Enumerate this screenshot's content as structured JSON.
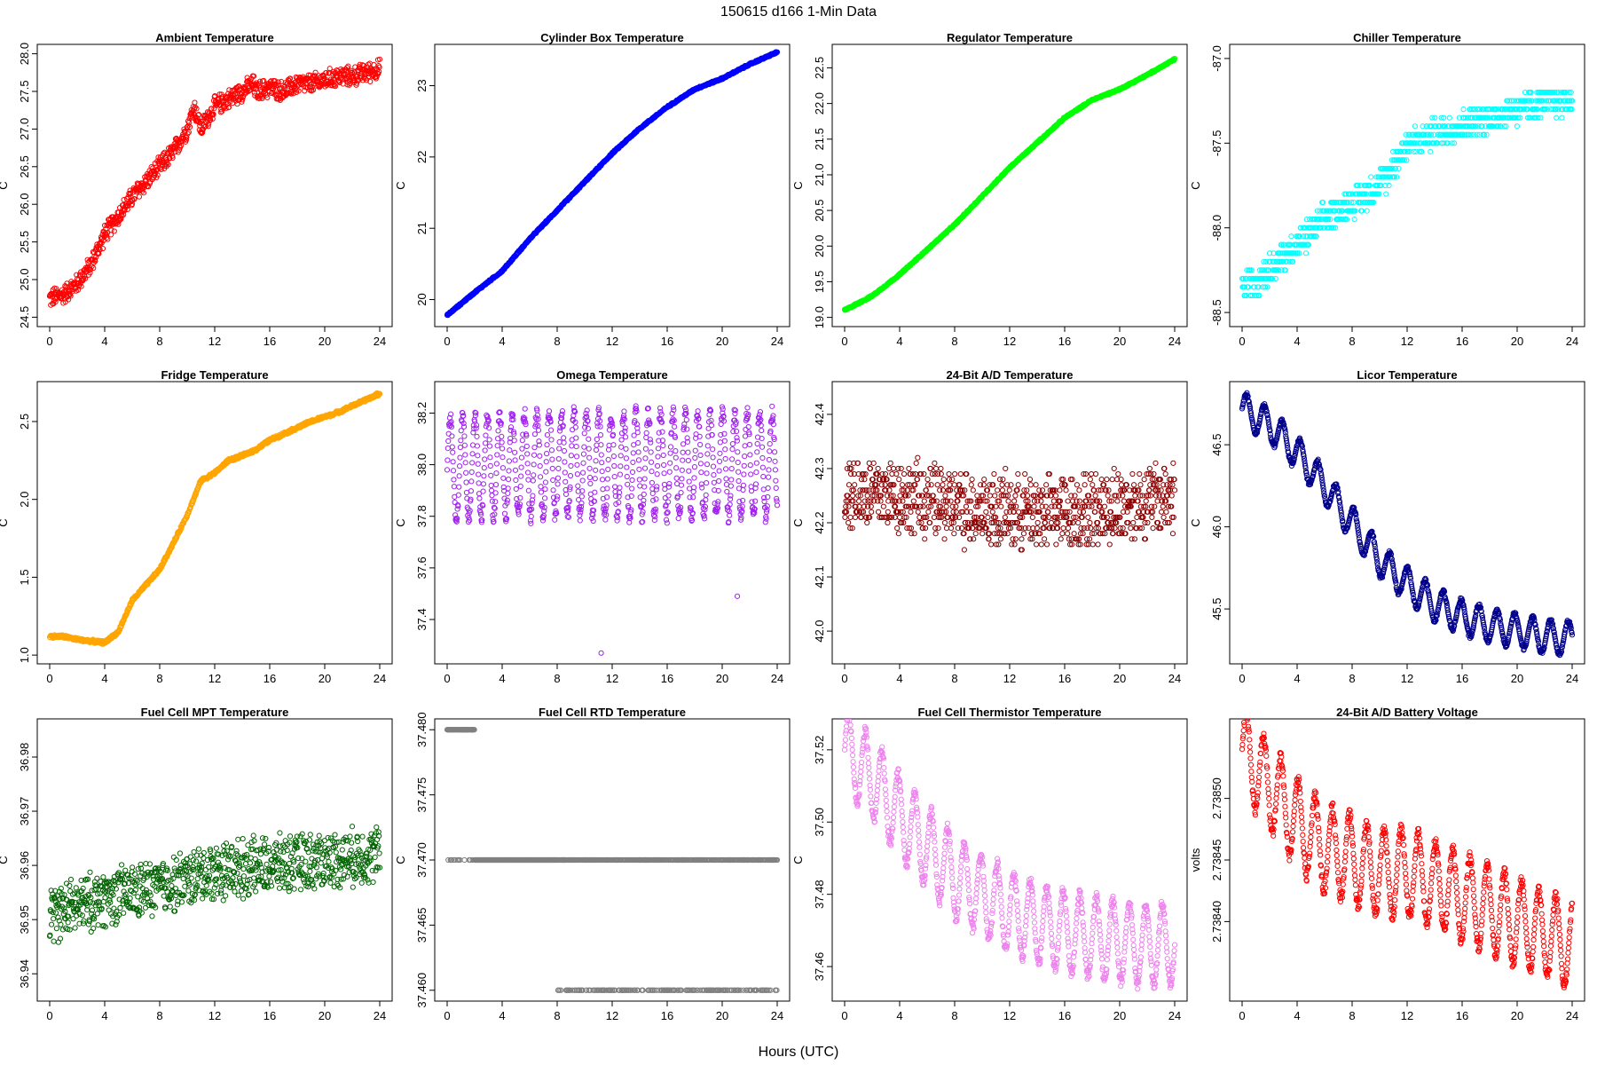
{
  "figure": {
    "title": "150615    d166    1-Min Data",
    "xlabel": "Hours (UTC)"
  },
  "chart_data": [
    {
      "type": "scatter",
      "title": "Ambient Temperature",
      "ylabel": "C",
      "color": "#ff0000",
      "xlim": [
        0,
        24
      ],
      "ylim": [
        24.45,
        28.05
      ],
      "xticks": [
        "0",
        "4",
        "8",
        "12",
        "16",
        "20",
        "24"
      ],
      "yticks": [
        "24.5",
        "25.0",
        "25.5",
        "26.0",
        "26.5",
        "27.0",
        "27.5",
        "28.0"
      ],
      "x": [
        0,
        1,
        2,
        3,
        4,
        5,
        6,
        7,
        8,
        9,
        10,
        10.5,
        11,
        12,
        13,
        14,
        14.8,
        15,
        16,
        17,
        18,
        19,
        20,
        21,
        22,
        23,
        24
      ],
      "y": [
        24.75,
        24.8,
        24.95,
        25.2,
        25.6,
        25.85,
        26.1,
        26.3,
        26.5,
        26.7,
        27.0,
        27.3,
        27.0,
        27.3,
        27.4,
        27.5,
        27.6,
        27.5,
        27.55,
        27.5,
        27.6,
        27.6,
        27.65,
        27.7,
        27.7,
        27.75,
        27.8
      ],
      "noise": 0.15
    },
    {
      "type": "scatter",
      "title": "Cylinder Box Temperature",
      "ylabel": "C",
      "color": "#0000ff",
      "xlim": [
        0,
        24
      ],
      "ylim": [
        19.7,
        23.5
      ],
      "xticks": [
        "0",
        "4",
        "8",
        "12",
        "16",
        "20",
        "24"
      ],
      "yticks": [
        "20",
        "21",
        "22",
        "23"
      ],
      "x": [
        0,
        2,
        4,
        6,
        8,
        10,
        12,
        14,
        16,
        18,
        20,
        22,
        24
      ],
      "y": [
        19.78,
        20.1,
        20.4,
        20.85,
        21.25,
        21.65,
        22.05,
        22.4,
        22.7,
        22.95,
        23.1,
        23.3,
        23.47
      ],
      "noise": 0.015
    },
    {
      "type": "scatter",
      "title": "Regulator Temperature",
      "ylabel": "C",
      "color": "#00ff00",
      "xlim": [
        0,
        24
      ],
      "ylim": [
        18.95,
        22.75
      ],
      "xticks": [
        "0",
        "4",
        "8",
        "12",
        "16",
        "20",
        "24"
      ],
      "yticks": [
        "19.0",
        "19.5",
        "20.0",
        "20.5",
        "21.0",
        "21.5",
        "22.0",
        "22.5"
      ],
      "x": [
        0,
        2,
        4,
        6,
        8,
        10,
        12,
        14,
        16,
        18,
        20,
        22,
        24
      ],
      "y": [
        19.1,
        19.3,
        19.6,
        19.95,
        20.3,
        20.7,
        21.1,
        21.45,
        21.8,
        22.05,
        22.2,
        22.4,
        22.62
      ],
      "noise": 0.015
    },
    {
      "type": "scatter",
      "title": "Chiller Temperature",
      "ylabel": "C",
      "color": "#00ffff",
      "xlim": [
        0,
        24
      ],
      "ylim": [
        -88.55,
        -86.95
      ],
      "xticks": [
        "0",
        "4",
        "8",
        "12",
        "16",
        "20",
        "24"
      ],
      "yticks": [
        "-88.5",
        "-88.0",
        "-87.5",
        "-87.0"
      ],
      "x": [
        0,
        2,
        4,
        6,
        8,
        10,
        12,
        14,
        16,
        18,
        20,
        22,
        24
      ],
      "y": [
        -88.35,
        -88.25,
        -88.1,
        -87.95,
        -87.85,
        -87.75,
        -87.5,
        -87.45,
        -87.4,
        -87.35,
        -87.3,
        -87.25,
        -87.25
      ],
      "noise": 0.1,
      "quantize": 0.05
    },
    {
      "type": "scatter",
      "title": "Fridge Temperature",
      "ylabel": "C",
      "color": "#ffa500",
      "xlim": [
        0,
        24
      ],
      "ylim": [
        0.98,
        2.72
      ],
      "xticks": [
        "0",
        "4",
        "8",
        "12",
        "16",
        "20",
        "24"
      ],
      "yticks": [
        "1.0",
        "1.5",
        "2.0",
        "2.5"
      ],
      "x": [
        0,
        1,
        2,
        3,
        4,
        5,
        6,
        7,
        8,
        9,
        10,
        11,
        12,
        13,
        14,
        15,
        16,
        17,
        18,
        19,
        20,
        21,
        22,
        23,
        24
      ],
      "y": [
        1.12,
        1.12,
        1.1,
        1.09,
        1.08,
        1.15,
        1.35,
        1.45,
        1.55,
        1.72,
        1.9,
        2.12,
        2.17,
        2.25,
        2.28,
        2.32,
        2.38,
        2.42,
        2.46,
        2.5,
        2.53,
        2.56,
        2.6,
        2.64,
        2.68
      ],
      "noise": 0.012
    },
    {
      "type": "scatter",
      "title": "Omega Temperature",
      "ylabel": "C",
      "color": "#a020f0",
      "xlim": [
        0,
        24
      ],
      "ylim": [
        37.25,
        38.3
      ],
      "xticks": [
        "0",
        "4",
        "8",
        "12",
        "16",
        "20",
        "24"
      ],
      "yticks": [
        "37.4",
        "37.6",
        "37.8",
        "38.0",
        "38.2"
      ],
      "x": [
        0,
        2,
        4,
        6,
        8,
        10,
        12,
        14,
        16,
        18,
        20,
        22,
        24
      ],
      "y": [
        37.98,
        37.99,
        38.0,
        38.0,
        38.0,
        38.0,
        37.99,
        38.0,
        38.0,
        38.0,
        38.0,
        38.0,
        38.0
      ],
      "oscillation": {
        "amplitude": 0.2,
        "period": 0.9
      },
      "outliers": [
        [
          11.2,
          37.27
        ],
        [
          21.1,
          37.49
        ]
      ]
    },
    {
      "type": "scatter",
      "title": "24-Bit A/D Temperature",
      "ylabel": "C",
      "color": "#8b0000",
      "xlim": [
        0,
        24
      ],
      "ylim": [
        41.95,
        42.45
      ],
      "xticks": [
        "0",
        "4",
        "8",
        "12",
        "16",
        "20",
        "24"
      ],
      "yticks": [
        "42.0",
        "42.1",
        "42.2",
        "42.3",
        "42.4"
      ],
      "x": [
        0,
        4,
        8,
        12,
        16,
        20,
        24
      ],
      "y": [
        42.26,
        42.25,
        42.23,
        42.22,
        42.22,
        42.23,
        42.25
      ],
      "noise": 0.08,
      "quantize": 0.01
    },
    {
      "type": "scatter",
      "title": "Licor Temperature",
      "ylabel": "C",
      "color": "#00008b",
      "xlim": [
        0,
        24
      ],
      "ylim": [
        45.2,
        46.85
      ],
      "xticks": [
        "0",
        "4",
        "8",
        "12",
        "16",
        "20",
        "24"
      ],
      "yticks": [
        "45.5",
        "46.0",
        "46.5"
      ],
      "x": [
        0,
        2,
        4,
        6,
        8,
        10,
        12,
        14,
        16,
        18,
        20,
        22,
        24
      ],
      "y": [
        46.72,
        46.62,
        46.45,
        46.25,
        46.02,
        45.8,
        45.65,
        45.53,
        45.45,
        45.4,
        45.37,
        45.33,
        45.32
      ],
      "oscillation": {
        "amplitude": 0.1,
        "period": 1.3
      }
    },
    {
      "type": "scatter",
      "title": "Fuel Cell MPT Temperature",
      "ylabel": "C",
      "color": "#006400",
      "xlim": [
        0,
        24
      ],
      "ylim": [
        36.936,
        36.986
      ],
      "xticks": [
        "0",
        "4",
        "8",
        "12",
        "16",
        "20",
        "24"
      ],
      "yticks": [
        "36.94",
        "36.95",
        "36.96",
        "36.97",
        "36.98"
      ],
      "x": [
        0,
        4,
        8,
        12,
        16,
        20,
        24
      ],
      "y": [
        36.951,
        36.954,
        36.956,
        36.959,
        36.96,
        36.961,
        36.962
      ],
      "noise": 0.006
    },
    {
      "type": "scatter",
      "title": "Fuel Cell RTD Temperature",
      "ylabel": "C",
      "color": "#808080",
      "xlim": [
        0,
        24
      ],
      "ylim": [
        37.4596,
        37.4804
      ],
      "xticks": [
        "0",
        "4",
        "8",
        "12",
        "16",
        "20",
        "24"
      ],
      "yticks": [
        "37.460",
        "37.465",
        "37.470",
        "37.475",
        "37.480"
      ],
      "levels": [
        37.46,
        37.47,
        37.48
      ],
      "x": [
        0,
        4,
        8,
        12,
        16,
        20,
        24
      ],
      "y": [
        37.476,
        37.472,
        37.469,
        37.468,
        37.468,
        37.466,
        37.466
      ]
    },
    {
      "type": "scatter",
      "title": "Fuel Cell Thermistor Temperature",
      "ylabel": "C",
      "color": "#ee82ee",
      "xlim": [
        0,
        24
      ],
      "ylim": [
        37.452,
        37.527
      ],
      "xticks": [
        "0",
        "4",
        "8",
        "12",
        "16",
        "20",
        "24"
      ],
      "yticks": [
        "37.46",
        "37.48",
        "37.50",
        "37.52"
      ],
      "x": [
        0,
        2,
        4,
        6,
        8,
        10,
        12,
        14,
        16,
        18,
        20,
        22,
        24
      ],
      "y": [
        37.52,
        37.512,
        37.502,
        37.493,
        37.485,
        37.48,
        37.475,
        37.472,
        37.47,
        37.468,
        37.467,
        37.466,
        37.466
      ],
      "oscillation": {
        "amplitude": 0.011,
        "period": 1.2
      }
    },
    {
      "type": "scatter",
      "title": "24-Bit A/D Battery Voltage",
      "ylabel": "volts",
      "color": "#ff0000",
      "xlim": [
        0,
        24
      ],
      "ylim": [
        2.73834,
        2.73856
      ],
      "xticks": [
        "0",
        "4",
        "8",
        "12",
        "16",
        "20",
        "24"
      ],
      "yticks": [
        "2.73840",
        "2.73845",
        "2.73850"
      ],
      "x": [
        0,
        2,
        4,
        6,
        8,
        10,
        12,
        14,
        16,
        18,
        20,
        22,
        24
      ],
      "y": [
        2.73854,
        2.73851,
        2.73848,
        2.73846,
        2.73845,
        2.73844,
        2.73844,
        2.73843,
        2.73842,
        2.73841,
        2.7384,
        2.73839,
        2.73838
      ],
      "oscillation": {
        "amplitude": 3.5e-05,
        "period": 1.25
      }
    }
  ]
}
